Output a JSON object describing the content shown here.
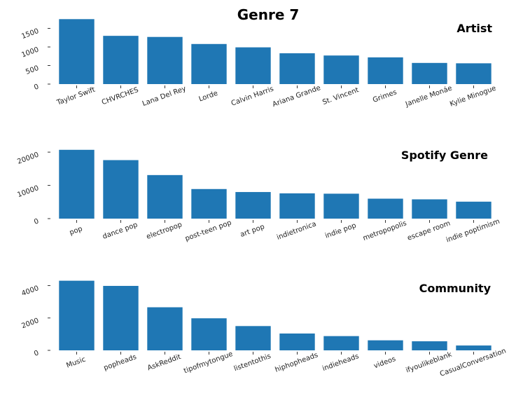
{
  "title": "Genre 7",
  "bar_color": "#1f77b4",
  "chart_data": [
    {
      "type": "bar",
      "title": "Artist",
      "categories": [
        "Taylor Swift",
        "CHVRCHES",
        "Lana Del Rey",
        "Lorde",
        "Calvin Harris",
        "Ariana Grande",
        "St. Vincent",
        "Grimes",
        "Janelle Monáe",
        "Kylie Minogue"
      ],
      "values": [
        1750,
        1300,
        1270,
        1080,
        990,
        830,
        770,
        720,
        570,
        560
      ],
      "ylim": [
        0,
        1850
      ],
      "yticks": [
        0,
        500,
        1000,
        1500
      ],
      "grid": false
    },
    {
      "type": "bar",
      "title": "Spotify Genre",
      "categories": [
        "pop",
        "dance pop",
        "electropop",
        "post-teen pop",
        "art pop",
        "indietronica",
        "indie pop",
        "metropopolis",
        "escape room",
        "indie poptimism"
      ],
      "values": [
        20700,
        17600,
        13100,
        8900,
        8000,
        7600,
        7500,
        6000,
        5800,
        5100
      ],
      "ylim": [
        0,
        21500
      ],
      "yticks": [
        0,
        10000,
        20000
      ],
      "grid": false
    },
    {
      "type": "bar",
      "title": "Community",
      "categories": [
        "Music",
        "popheads",
        "AskReddit",
        "tipofmytongue",
        "listentothis",
        "hiphopheads",
        "indieheads",
        "videos",
        "ifyoulikeblank",
        "CasualConversation"
      ],
      "values": [
        4300,
        3980,
        2660,
        1980,
        1500,
        1040,
        880,
        620,
        560,
        300
      ],
      "ylim": [
        0,
        4500
      ],
      "yticks": [
        0,
        2000,
        4000
      ],
      "grid": false
    }
  ]
}
